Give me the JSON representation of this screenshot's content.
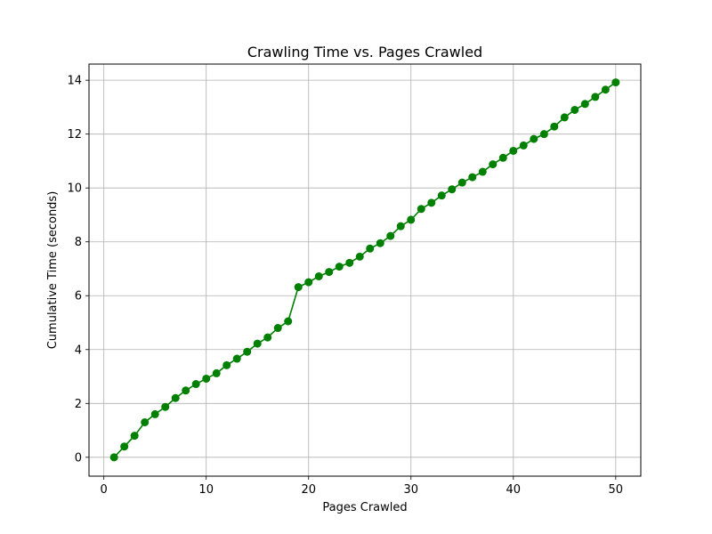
{
  "chart_data": {
    "type": "line",
    "title": "Crawling Time vs. Pages Crawled",
    "xlabel": "Pages Crawled",
    "ylabel": "Cumulative Time (seconds)",
    "xlim": [
      -1.45,
      52.45
    ],
    "ylim": [
      -0.7,
      14.6
    ],
    "xticks": [
      0,
      10,
      20,
      30,
      40,
      50
    ],
    "yticks": [
      0,
      2,
      4,
      6,
      8,
      10,
      12,
      14
    ],
    "grid": true,
    "marker": "circle",
    "series": [
      {
        "color": "#008000",
        "x": [
          1,
          2,
          3,
          4,
          5,
          6,
          7,
          8,
          9,
          10,
          11,
          12,
          13,
          14,
          15,
          16,
          17,
          18,
          19,
          20,
          21,
          22,
          23,
          24,
          25,
          26,
          27,
          28,
          29,
          30,
          31,
          32,
          33,
          34,
          35,
          36,
          37,
          38,
          39,
          40,
          41,
          42,
          43,
          44,
          45,
          46,
          47,
          48,
          49,
          50
        ],
        "y": [
          0.0,
          0.4,
          0.8,
          1.3,
          1.6,
          1.87,
          2.2,
          2.48,
          2.72,
          2.92,
          3.12,
          3.42,
          3.66,
          3.92,
          4.22,
          4.45,
          4.8,
          5.05,
          6.32,
          6.5,
          6.72,
          6.88,
          7.08,
          7.22,
          7.45,
          7.75,
          7.95,
          8.22,
          8.58,
          8.82,
          9.22,
          9.45,
          9.72,
          9.95,
          10.2,
          10.4,
          10.6,
          10.88,
          11.12,
          11.38,
          11.58,
          11.82,
          12.0,
          12.28,
          12.62,
          12.9,
          13.12,
          13.38,
          13.65,
          13.92
        ]
      }
    ]
  }
}
